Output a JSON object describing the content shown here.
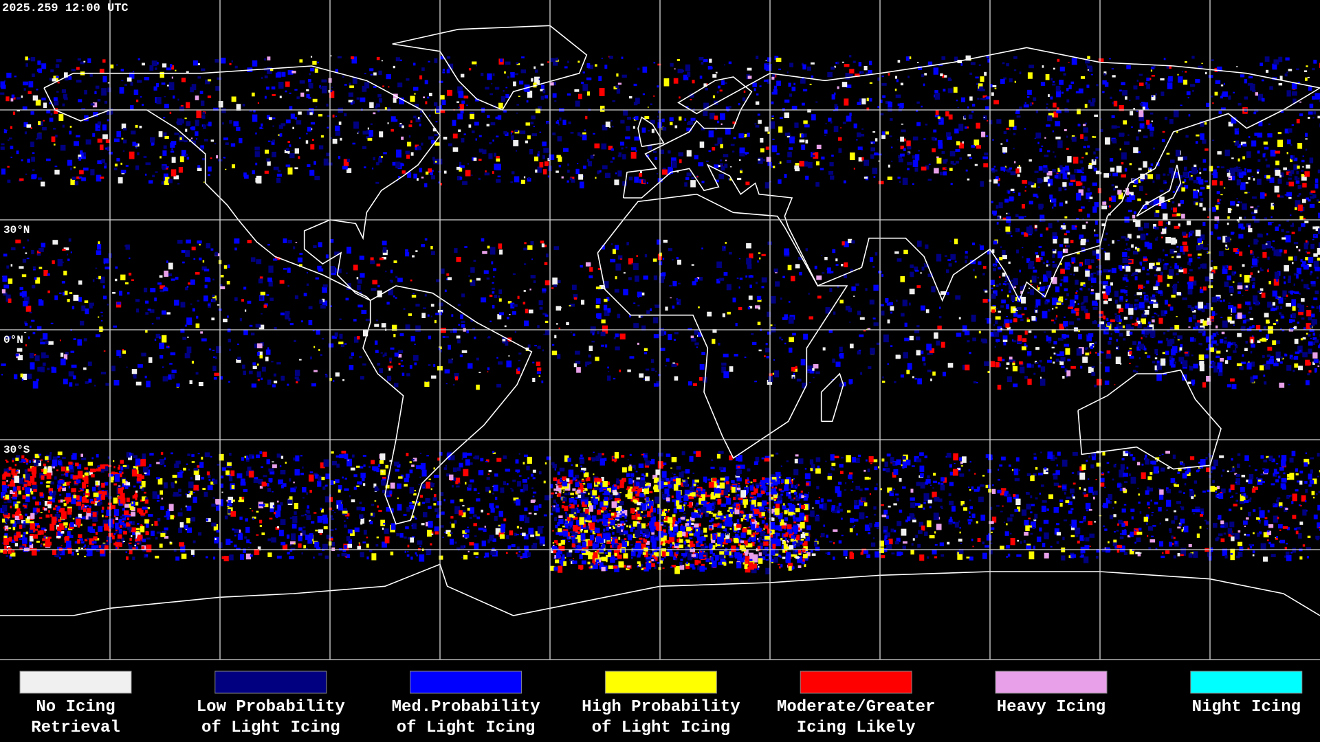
{
  "header": {
    "timestamp": "2025.259 12:00 UTC"
  },
  "map": {
    "latitude_labels": [
      "30°N",
      "0°N",
      "30°S"
    ]
  },
  "legend": {
    "items": [
      {
        "label": [
          "No Icing",
          "Retrieval"
        ],
        "color": "#f0f0f0"
      },
      {
        "label": [
          "Low Probability",
          "of Light Icing"
        ],
        "color": "#000080"
      },
      {
        "label": [
          "Med.Probability",
          "of Light Icing"
        ],
        "color": "#0000ff"
      },
      {
        "label": [
          "High Probability",
          "of Light Icing"
        ],
        "color": "#ffff00"
      },
      {
        "label": [
          "Moderate/Greater",
          "Icing Likely"
        ],
        "color": "#ff0000"
      },
      {
        "label": [
          "Heavy Icing"
        ],
        "color": "#e8a0e8"
      },
      {
        "label": [
          "Night Icing"
        ],
        "color": "#00ffff"
      }
    ]
  }
}
